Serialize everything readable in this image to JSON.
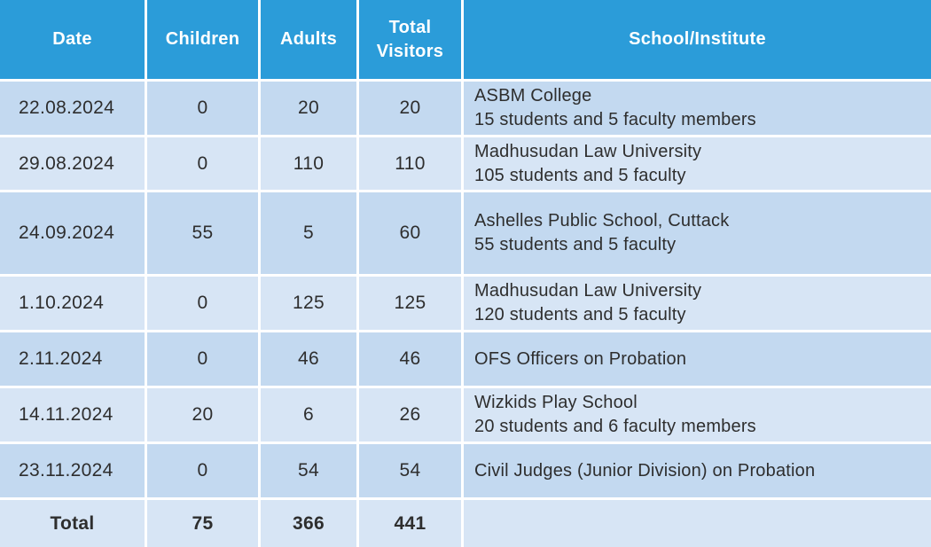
{
  "colors": {
    "header_bg": "#2b9cd9",
    "header_text": "#ffffff",
    "row_odd_bg": "#c3d9f0",
    "row_even_bg": "#d7e5f5",
    "body_text": "#2e2e2e",
    "gridline": "#ffffff"
  },
  "table": {
    "headers": {
      "date": "Date",
      "children": "Children",
      "adults": "Adults",
      "total_visitors": "Total Visitors",
      "school": "School/Institute"
    },
    "rows": [
      {
        "date": "22.08.2024",
        "children": "0",
        "adults": "20",
        "total": "20",
        "school_name": "ASBM College",
        "school_detail": "15 students and 5 faculty members"
      },
      {
        "date": "29.08.2024",
        "children": "0",
        "adults": "110",
        "total": "110",
        "school_name": "Madhusudan Law University",
        "school_detail": "105 students and 5 faculty"
      },
      {
        "date": "24.09.2024",
        "children": "55",
        "adults": "5",
        "total": "60",
        "school_name": "Ashelles Public School, Cuttack",
        "school_detail": "55 students and 5 faculty"
      },
      {
        "date": "1.10.2024",
        "children": "0",
        "adults": "125",
        "total": "125",
        "school_name": "Madhusudan Law University",
        "school_detail": "120 students and 5 faculty"
      },
      {
        "date": "2.11.2024",
        "children": "0",
        "adults": "46",
        "total": "46",
        "school_name": "OFS Officers on Probation",
        "school_detail": ""
      },
      {
        "date": "14.11.2024",
        "children": "20",
        "adults": "6",
        "total": "26",
        "school_name": "Wizkids Play School",
        "school_detail": "20 students and 6 faculty members"
      },
      {
        "date": "23.11.2024",
        "children": "0",
        "adults": "54",
        "total": "54",
        "school_name": "Civil Judges (Junior Division) on Probation",
        "school_detail": ""
      }
    ],
    "total_row": {
      "label": "Total",
      "children": "75",
      "adults": "366",
      "total": "441",
      "school": ""
    }
  },
  "chart_data": {
    "type": "table",
    "columns": [
      "Date",
      "Children",
      "Adults",
      "Total Visitors",
      "School/Institute"
    ],
    "rows": [
      [
        "22.08.2024",
        0,
        20,
        20,
        "ASBM College — 15 students and 5 faculty members"
      ],
      [
        "29.08.2024",
        0,
        110,
        110,
        "Madhusudan Law University — 105 students and 5 faculty"
      ],
      [
        "24.09.2024",
        55,
        5,
        60,
        "Ashelles Public School, Cuttack — 55 students and 5 faculty"
      ],
      [
        "1.10.2024",
        0,
        125,
        125,
        "Madhusudan Law University — 120 students and 5 faculty"
      ],
      [
        "2.11.2024",
        0,
        46,
        46,
        "OFS Officers on Probation"
      ],
      [
        "14.11.2024",
        20,
        6,
        26,
        "Wizkids Play School — 20 students and 6 faculty members"
      ],
      [
        "23.11.2024",
        0,
        54,
        54,
        "Civil Judges (Junior Division) on Probation"
      ]
    ],
    "totals": {
      "label": "Total",
      "children": 75,
      "adults": 366,
      "total_visitors": 441
    }
  }
}
